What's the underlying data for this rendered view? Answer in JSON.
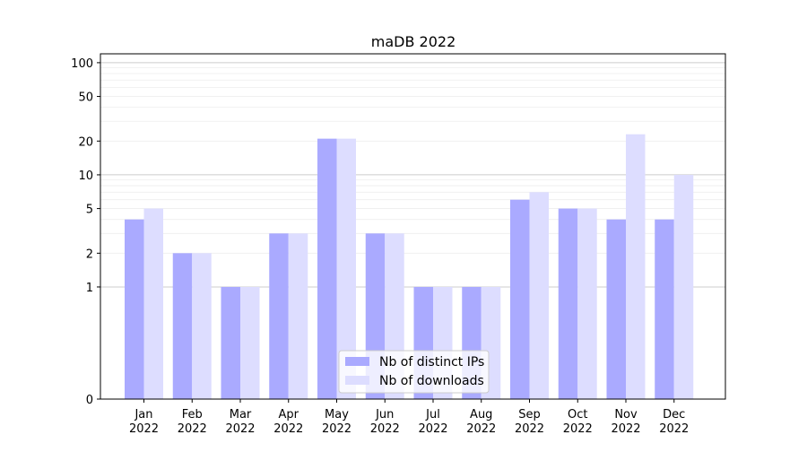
{
  "chart_data": {
    "type": "bar",
    "title": "maDB 2022",
    "y_scale": "symlog",
    "ylim": [
      0,
      120
    ],
    "grid": true,
    "legend_placement": "bottom-center",
    "categories": [
      {
        "month": "Jan",
        "year": "2022"
      },
      {
        "month": "Feb",
        "year": "2022"
      },
      {
        "month": "Mar",
        "year": "2022"
      },
      {
        "month": "Apr",
        "year": "2022"
      },
      {
        "month": "May",
        "year": "2022"
      },
      {
        "month": "Jun",
        "year": "2022"
      },
      {
        "month": "Jul",
        "year": "2022"
      },
      {
        "month": "Aug",
        "year": "2022"
      },
      {
        "month": "Sep",
        "year": "2022"
      },
      {
        "month": "Oct",
        "year": "2022"
      },
      {
        "month": "Nov",
        "year": "2022"
      },
      {
        "month": "Dec",
        "year": "2022"
      }
    ],
    "series": [
      {
        "name": "Nb of distinct IPs",
        "color": "#aaaaff",
        "values": [
          4,
          2,
          1,
          3,
          21,
          3,
          1,
          1,
          6,
          5,
          4,
          4
        ]
      },
      {
        "name": "Nb of downloads",
        "color": "#ddddff",
        "values": [
          5,
          2,
          1,
          3,
          21,
          3,
          1,
          1,
          7,
          5,
          23,
          10
        ]
      }
    ],
    "y_ticks": [
      {
        "value": 0,
        "label": "0"
      },
      {
        "value": 1,
        "label": "1"
      },
      {
        "value": 2,
        "label": "2"
      },
      {
        "value": 5,
        "label": "5"
      },
      {
        "value": 10,
        "label": "10"
      },
      {
        "value": 20,
        "label": "20"
      },
      {
        "value": 50,
        "label": "50"
      },
      {
        "value": 100,
        "label": "100"
      }
    ],
    "colors": {
      "axis": "#000000",
      "major_grid": "#cccccc",
      "minor_grid": "#eeeeee"
    }
  }
}
